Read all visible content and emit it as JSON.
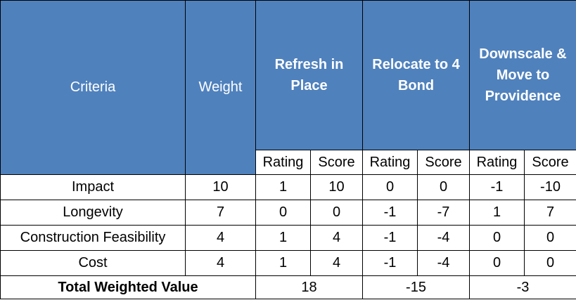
{
  "headers": {
    "criteria": "Criteria",
    "weight": "Weight",
    "options": [
      "Refresh in Place",
      "Relocate to 4 Bond",
      "Downscale & Move to Providence"
    ],
    "sub": [
      "Rating",
      "Score",
      "Rating",
      "Score",
      "Rating",
      "Score"
    ]
  },
  "rows": [
    {
      "criteria": "Impact",
      "weight": "10",
      "cells": [
        "1",
        "10",
        "0",
        "0",
        "-1",
        "-10"
      ]
    },
    {
      "criteria": "Longevity",
      "weight": "7",
      "cells": [
        "0",
        "0",
        "-1",
        "-7",
        "1",
        "7"
      ]
    },
    {
      "criteria": "Construction Feasibility",
      "weight": "4",
      "cells": [
        "1",
        "4",
        "-1",
        "-4",
        "0",
        "0"
      ]
    },
    {
      "criteria": "Cost",
      "weight": "4",
      "cells": [
        "1",
        "4",
        "-1",
        "-4",
        "0",
        "0"
      ]
    }
  ],
  "total": {
    "label": "Total Weighted Value",
    "values": [
      "18",
      "-15",
      "-3"
    ]
  },
  "colors": {
    "header_fill": "#4f81bd",
    "header_text": "#ffffff",
    "border": "#000000"
  }
}
